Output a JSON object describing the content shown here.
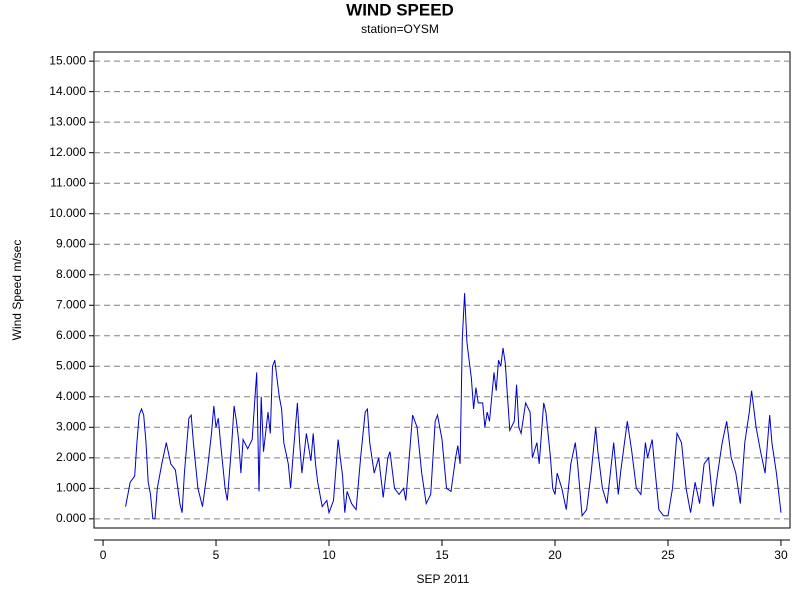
{
  "chart_data": {
    "type": "line",
    "title": "WIND SPEED",
    "subtitle": "station=OYSM",
    "x_label": "SEP 2011",
    "y_label": "Wind Speed m/sec",
    "xlim": [
      -0.4,
      30.4
    ],
    "ylim": [
      -0.3,
      15.3
    ],
    "xticks": [
      0,
      5,
      10,
      15,
      20,
      25,
      30
    ],
    "yticks": [
      {
        "value": 0,
        "label": "0.000"
      },
      {
        "value": 1,
        "label": "1.000"
      },
      {
        "value": 2,
        "label": "2.000"
      },
      {
        "value": 3,
        "label": "3.000"
      },
      {
        "value": 4,
        "label": "4.000"
      },
      {
        "value": 5,
        "label": "5.000"
      },
      {
        "value": 6,
        "label": "6.000"
      },
      {
        "value": 7,
        "label": "7.000"
      },
      {
        "value": 8,
        "label": "8.000"
      },
      {
        "value": 9,
        "label": "9.000"
      },
      {
        "value": 10,
        "label": "10.000"
      },
      {
        "value": 11,
        "label": "11.000"
      },
      {
        "value": 12,
        "label": "12.000"
      },
      {
        "value": 13,
        "label": "13.000"
      },
      {
        "value": 14,
        "label": "14.000"
      },
      {
        "value": 15,
        "label": "15.000"
      }
    ],
    "grid": true,
    "x": [
      1.0,
      1.2,
      1.4,
      1.5,
      1.6,
      1.7,
      1.8,
      1.9,
      2.0,
      2.1,
      2.2,
      2.3,
      2.4,
      2.6,
      2.8,
      3.0,
      3.2,
      3.4,
      3.5,
      3.6,
      3.8,
      3.9,
      4.0,
      4.2,
      4.4,
      4.6,
      4.8,
      4.9,
      5.0,
      5.1,
      5.2,
      5.4,
      5.5,
      5.7,
      5.8,
      5.9,
      6.0,
      6.1,
      6.2,
      6.4,
      6.6,
      6.7,
      6.8,
      6.9,
      7.0,
      7.1,
      7.3,
      7.4,
      7.5,
      7.6,
      7.7,
      7.8,
      7.9,
      8.0,
      8.2,
      8.3,
      8.4,
      8.6,
      8.7,
      8.8,
      9.0,
      9.2,
      9.3,
      9.4,
      9.5,
      9.7,
      9.9,
      10.0,
      10.2,
      10.4,
      10.5,
      10.6,
      10.7,
      10.8,
      11.0,
      11.2,
      11.4,
      11.6,
      11.7,
      11.8,
      12.0,
      12.2,
      12.4,
      12.6,
      12.7,
      12.9,
      13.1,
      13.3,
      13.4,
      13.6,
      13.7,
      13.9,
      14.1,
      14.3,
      14.5,
      14.7,
      14.8,
      15.0,
      15.2,
      15.4,
      15.6,
      15.7,
      15.8,
      15.9,
      16.0,
      16.1,
      16.2,
      16.3,
      16.4,
      16.5,
      16.6,
      16.8,
      16.9,
      17.0,
      17.1,
      17.3,
      17.4,
      17.5,
      17.6,
      17.7,
      17.8,
      17.9,
      18.0,
      18.2,
      18.3,
      18.4,
      18.5,
      18.7,
      18.9,
      19.0,
      19.2,
      19.3,
      19.5,
      19.6,
      19.8,
      19.9,
      20.0,
      20.1,
      20.3,
      20.5,
      20.7,
      20.9,
      21.0,
      21.2,
      21.4,
      21.6,
      21.8,
      21.9,
      22.1,
      22.3,
      22.6,
      22.8,
      22.9,
      23.2,
      23.4,
      23.6,
      23.8,
      24.0,
      24.1,
      24.3,
      24.4,
      24.6,
      24.8,
      25.0,
      25.2,
      25.4,
      25.6,
      25.8,
      26.0,
      26.2,
      26.4,
      26.6,
      26.8,
      27.0,
      27.2,
      27.4,
      27.6,
      27.8,
      28.0,
      28.2,
      28.4,
      28.6,
      28.7,
      28.9,
      29.1,
      29.3,
      29.5,
      29.6,
      29.8,
      30.0
    ],
    "series": [
      {
        "name": "Wind Speed",
        "color": "#0000cc",
        "values": [
          0.4,
          1.2,
          1.4,
          2.5,
          3.4,
          3.6,
          3.4,
          2.5,
          1.2,
          0.8,
          0.0,
          0.0,
          1.0,
          1.8,
          2.5,
          1.8,
          1.6,
          0.5,
          0.2,
          1.5,
          3.3,
          3.4,
          2.5,
          1.0,
          0.4,
          1.5,
          2.8,
          3.7,
          3.0,
          3.3,
          2.5,
          1.0,
          0.6,
          2.5,
          3.7,
          3.2,
          2.6,
          1.5,
          2.6,
          2.3,
          2.6,
          3.7,
          4.8,
          0.9,
          4.0,
          2.2,
          3.5,
          2.8,
          5.0,
          5.2,
          4.6,
          4.0,
          3.6,
          2.5,
          1.8,
          1.0,
          2.0,
          3.8,
          2.5,
          1.5,
          2.8,
          1.9,
          2.8,
          1.8,
          1.2,
          0.4,
          0.6,
          0.2,
          0.6,
          2.6,
          2.0,
          1.4,
          0.2,
          0.9,
          0.5,
          0.3,
          2.0,
          3.5,
          3.6,
          2.5,
          1.5,
          2.0,
          0.7,
          2.0,
          2.2,
          1.0,
          0.8,
          1.0,
          0.6,
          2.5,
          3.4,
          3.0,
          1.5,
          0.5,
          0.8,
          3.2,
          3.4,
          2.6,
          1.0,
          0.9,
          2.0,
          2.4,
          1.8,
          5.9,
          7.4,
          5.8,
          5.2,
          4.6,
          3.6,
          4.3,
          3.8,
          3.8,
          3.0,
          3.5,
          3.2,
          4.8,
          4.2,
          5.2,
          5.0,
          5.6,
          5.1,
          4.0,
          2.9,
          3.2,
          4.4,
          3.0,
          2.8,
          3.8,
          3.5,
          2.0,
          2.5,
          1.8,
          3.8,
          3.5,
          2.0,
          1.0,
          0.8,
          1.5,
          1.0,
          0.3,
          1.8,
          2.5,
          1.8,
          0.1,
          0.3,
          1.5,
          3.0,
          2.2,
          1.0,
          0.5,
          2.5,
          0.8,
          1.5,
          3.2,
          2.2,
          1.0,
          0.8,
          2.5,
          2.0,
          2.6,
          1.8,
          0.3,
          0.1,
          0.1,
          1.0,
          2.8,
          2.5,
          1.0,
          0.2,
          1.2,
          0.5,
          1.8,
          2.0,
          0.4,
          1.5,
          2.5,
          3.2,
          2.0,
          1.5,
          0.5,
          2.5,
          3.5,
          4.2,
          3.0,
          2.2,
          1.5,
          3.4,
          2.5,
          1.5,
          0.2
        ]
      }
    ]
  }
}
